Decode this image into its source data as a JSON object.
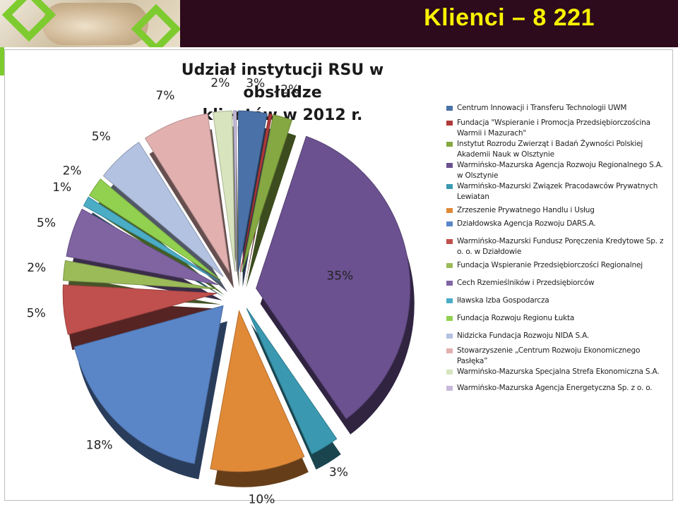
{
  "header": {
    "title": "Klienci – 8 221"
  },
  "chart_data": {
    "type": "pie",
    "title_lines": [
      "Udział instytucji RSU w obsłudze",
      "klientów w 2012  r."
    ],
    "legend_position": "right",
    "slices": [
      {
        "name": "Centrum Innowacji i Transferu Technologii UWM",
        "value": 3,
        "label": "3%",
        "color": "#4a72a8"
      },
      {
        "name": "Fundacja \"Wspieranie i Promocja Przedsiębiorczościna Warmii i Mazurach\"",
        "value": 0.3,
        "label": "",
        "color": "#b03a3a"
      },
      {
        "name": "Instytut Rozrodu Zwierząt i Badań Żywności Polskiej Akademii Nauk w Olsztynie",
        "value": 2,
        "label": "2%",
        "color": "#86a842"
      },
      {
        "name": "Warmińsko-Mazurska Agencja Rozwoju Regionalnego S.A. w Olsztynie",
        "value": 35,
        "label": "35%",
        "color": "#6b5190"
      },
      {
        "name": "Warmińsko-Mazurski Związek Pracodawców Prywatnych Lewiatan",
        "value": 3,
        "label": "3%",
        "color": "#3a99b0"
      },
      {
        "name": "Zrzeszenie Prywatnego Handlu i Usług",
        "value": 10,
        "label": "10%",
        "color": "#e08a38"
      },
      {
        "name": "Działdowska Agencja Rozwoju DARS.A.",
        "value": 18,
        "label": "18%",
        "color": "#5a86c8"
      },
      {
        "name": "Warmińsko-Mazurski Fundusz Poręczenia Kredytowe Sp. z o. o. w Działdowie",
        "value": 5,
        "label": "5%",
        "color": "#c0504d"
      },
      {
        "name": "Fundacja Wspieranie Przedsiębiorczości Regionalnej",
        "value": 2,
        "label": "2%",
        "color": "#9bbb59"
      },
      {
        "name": "Cech Rzemieślników i Przedsiębiorców",
        "value": 5,
        "label": "5%",
        "color": "#8064a2"
      },
      {
        "name": "Iławska Izba Gospodarcza",
        "value": 1,
        "label": "1%",
        "color": "#4bacc6"
      },
      {
        "name": "Fundacja Rozwoju Regionu Łukta",
        "value": 2,
        "label": "2%",
        "color": "#92d050"
      },
      {
        "name": "Nidzicka Fundacja Rozwoju NIDA S.A.",
        "value": 5,
        "label": "5%",
        "color": "#b3c2e0"
      },
      {
        "name": "Stowarzyszenie „Centrum Rozwoju Ekonomicznego Pasłęka”",
        "value": 7,
        "label": "7%",
        "color": "#e3b0b0"
      },
      {
        "name": "Warmińsko-Mazurska Specjalna Strefa Ekonomiczna S.A.",
        "value": 2,
        "label": "2%",
        "color": "#d7e4bd"
      },
      {
        "name": "Warmińsko-Mazurska Agencja Energetyczna Sp. z o. o.",
        "value": 0.3,
        "label": "",
        "color": "#c6b9d9"
      }
    ]
  }
}
